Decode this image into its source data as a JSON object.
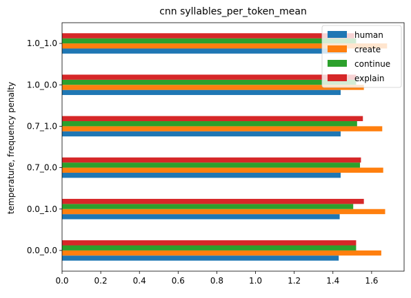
{
  "chart_data": {
    "type": "bar",
    "orientation": "horizontal",
    "title": "cnn syllables_per_token_mean",
    "xlabel": "",
    "ylabel": "temperature, frequency penalty",
    "categories": [
      "0.0_0.0",
      "0.0_1.0",
      "0.7_0.0",
      "0.7_1.0",
      "1.0_0.0",
      "1.0_1.0"
    ],
    "series": [
      {
        "name": "human",
        "color": "#1f77b4",
        "values": [
          1.43,
          1.435,
          1.44,
          1.44,
          1.44,
          1.47
        ]
      },
      {
        "name": "create",
        "color": "#ff7f0e",
        "values": [
          1.65,
          1.67,
          1.66,
          1.655,
          1.56,
          1.68
        ]
      },
      {
        "name": "continue",
        "color": "#2ca02c",
        "values": [
          1.52,
          1.505,
          1.54,
          1.525,
          1.52,
          1.52
        ]
      },
      {
        "name": "explain",
        "color": "#d62728",
        "values": [
          1.52,
          1.56,
          1.545,
          1.555,
          1.52,
          1.51
        ]
      }
    ],
    "xlim": [
      0,
      1.768
    ],
    "xticks": [
      {
        "value": 0.0,
        "label": "0.0"
      },
      {
        "value": 0.2,
        "label": "0.2"
      },
      {
        "value": 0.4,
        "label": "0.4"
      },
      {
        "value": 0.6,
        "label": "0.6"
      },
      {
        "value": 0.8,
        "label": "0.8"
      },
      {
        "value": 1.0,
        "label": "1.0"
      },
      {
        "value": 1.2,
        "label": "1.2"
      },
      {
        "value": 1.4,
        "label": "1.4"
      },
      {
        "value": 1.6,
        "label": "1.6"
      }
    ],
    "grid": false,
    "legend": "top-right"
  }
}
